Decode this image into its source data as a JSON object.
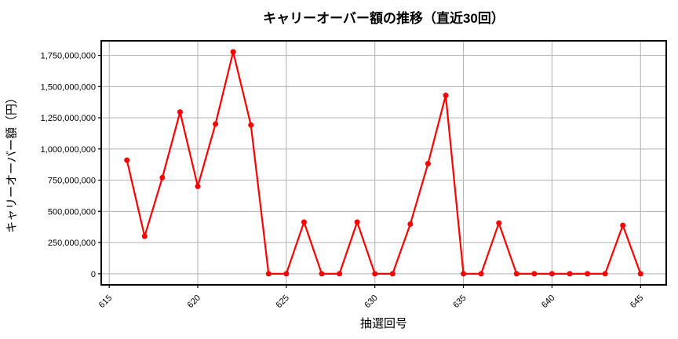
{
  "figure": {
    "background": "#ffffff"
  },
  "chart_data": {
    "type": "line",
    "title": "キャリーオーバー額の推移（直近30回）",
    "xlabel": "抽選回号",
    "ylabel": "キャリーオーバー額（円）",
    "x": [
      616,
      617,
      618,
      619,
      620,
      621,
      622,
      623,
      624,
      625,
      626,
      627,
      628,
      629,
      630,
      631,
      632,
      633,
      634,
      635,
      636,
      637,
      638,
      639,
      640,
      641,
      642,
      643,
      644,
      645
    ],
    "values": [
      910000000,
      300000000,
      770000000,
      1296000000,
      700000000,
      1200000000,
      1778000000,
      1192000000,
      0,
      0,
      414000000,
      0,
      0,
      414000000,
      0,
      0,
      398000000,
      882000000,
      1430000000,
      0,
      0,
      406000000,
      0,
      0,
      0,
      0,
      0,
      0,
      388000000,
      0
    ],
    "xticks": [
      615,
      620,
      625,
      630,
      635,
      640,
      645
    ],
    "yticks": [
      0,
      250000000,
      500000000,
      750000000,
      1000000000,
      1250000000,
      1500000000,
      1750000000
    ],
    "xlim": [
      614.55,
      646.45
    ],
    "ylim": [
      -88900000,
      1866900000
    ],
    "grid": true,
    "legend_position": "none",
    "line_color": "#ff0000",
    "marker": "circle",
    "grid_color": "#b0b0b0",
    "axis_color": "#000000",
    "text_color": "#000000"
  }
}
